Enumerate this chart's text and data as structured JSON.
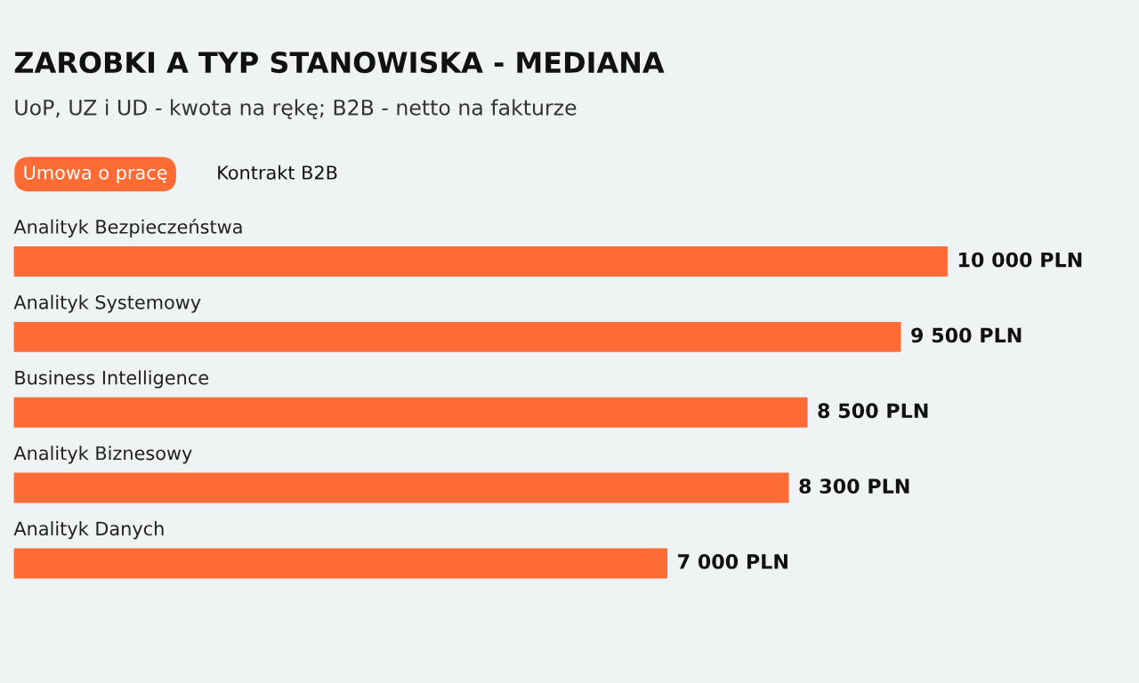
{
  "chart_data": {
    "type": "bar",
    "orientation": "horizontal",
    "title": "ZAROBKI A TYP STANOWISKA - MEDIANA",
    "subtitle": "UoP, UZ i UD - kwota na rękę; B2B - netto na fakturze",
    "categories": [
      "Analityk Bezpieczeństwa",
      "Analityk Systemowy",
      "Business Intelligence",
      "Analityk Biznesowy",
      "Analityk Danych"
    ],
    "series": [
      {
        "name": "Umowa o pracę",
        "color": "#ff6b35",
        "values": [
          10000,
          9500,
          8500,
          8300,
          7000
        ],
        "value_labels": [
          "10 000 PLN",
          "9 500 PLN",
          "8 500 PLN",
          "8 300 PLN",
          "7 000 PLN"
        ]
      }
    ],
    "legend": "top left",
    "annotations": [
      "Kontrakt B2B"
    ]
  }
}
